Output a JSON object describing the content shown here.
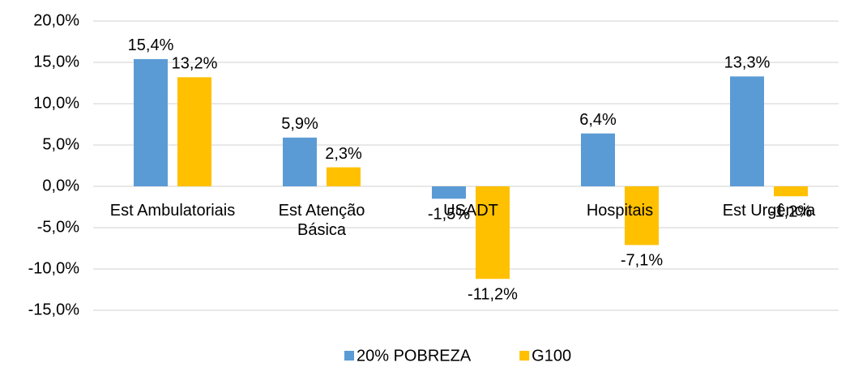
{
  "chart_data": {
    "type": "bar",
    "categories": [
      "Est Ambulatoriais",
      "Est Atenção Básica",
      "USADT",
      "Hospitais",
      "Est Urgência"
    ],
    "series": [
      {
        "name": "20% POBREZA",
        "color": "#5b9bd5",
        "values": [
          15.4,
          5.9,
          -1.5,
          6.4,
          13.3
        ],
        "value_labels": [
          "15,4%",
          "5,9%",
          "-1,5%",
          "6,4%",
          "13,3%"
        ]
      },
      {
        "name": "G100",
        "color": "#ffc000",
        "values": [
          13.2,
          2.3,
          -11.2,
          -7.1,
          -1.2
        ],
        "value_labels": [
          "13,2%",
          "2,3%",
          "-11,2%",
          "-7,1%",
          "-1,2%"
        ]
      }
    ],
    "ylim": [
      -15,
      20
    ],
    "yticks": [
      {
        "value": -15,
        "label": "-15,0%"
      },
      {
        "value": -10,
        "label": "-10,0%"
      },
      {
        "value": -5,
        "label": "-5,0%"
      },
      {
        "value": 0,
        "label": "0,0%"
      },
      {
        "value": 5,
        "label": "5,0%"
      },
      {
        "value": 10,
        "label": "10,0%"
      },
      {
        "value": 15,
        "label": "15,0%"
      },
      {
        "value": 20,
        "label": "20,0%"
      }
    ],
    "grid": true,
    "legend": "bottom"
  }
}
